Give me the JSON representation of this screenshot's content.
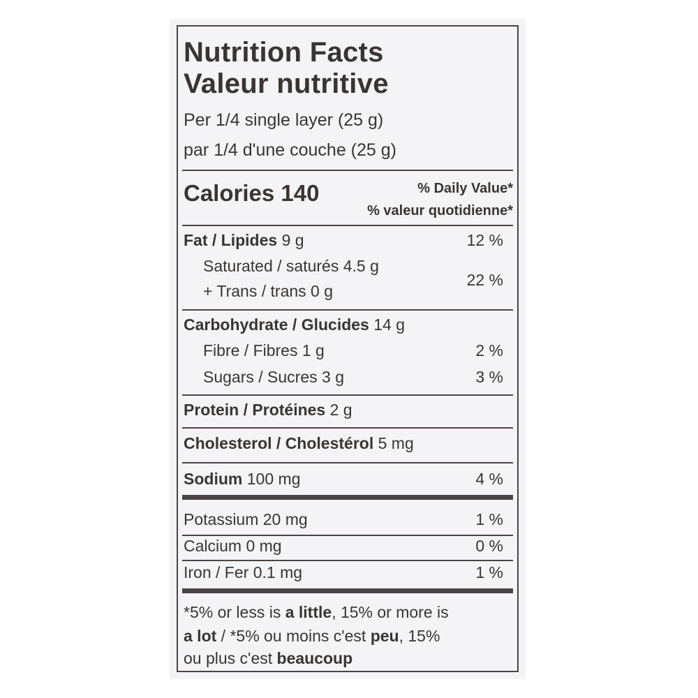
{
  "title_en": "Nutrition Facts",
  "title_fr": "Valeur nutritive",
  "serving_en": "Per 1/4 single layer (25 g)",
  "serving_fr": "par 1/4 d'une couche (25 g)",
  "calories": {
    "label": "Calories",
    "value": "140"
  },
  "daily_value_en": "% Daily Value*",
  "daily_value_fr": "% valeur quotidienne*",
  "nutrients": {
    "fat": {
      "label": "Fat / Lipides",
      "amount": "9 g",
      "dv": "12 %"
    },
    "saturated": {
      "label": "Saturated / saturés",
      "amount": "4.5 g"
    },
    "trans": {
      "label": "+ Trans / trans",
      "amount": "0 g"
    },
    "sat_trans_dv": "22 %",
    "carbohydrate": {
      "label": "Carbohydrate / Glucides",
      "amount": "14 g"
    },
    "fibre": {
      "label": "Fibre / Fibres",
      "amount": "1 g",
      "dv": "2 %"
    },
    "sugars": {
      "label": "Sugars / Sucres",
      "amount": "3 g",
      "dv": "3 %"
    },
    "protein": {
      "label": "Protein / Protéines",
      "amount": "2 g"
    },
    "cholesterol": {
      "label": "Cholesterol / Cholestérol",
      "amount": "5 mg"
    },
    "sodium": {
      "label": "Sodium",
      "amount": "100 mg",
      "dv": "4 %"
    },
    "potassium": {
      "label": "Potassium",
      "amount": "20 mg",
      "dv": "1 %"
    },
    "calcium": {
      "label": "Calcium",
      "amount": "0 mg",
      "dv": "0 %"
    },
    "iron": {
      "label": "Iron / Fer",
      "amount": "0.1 mg",
      "dv": "1 %"
    }
  },
  "footnote": {
    "p1": "*5% or less is ",
    "b1": "a little",
    "p2": ", 15% or more is",
    "b2": "a lot",
    "p3": " / *5% ou moins c'est ",
    "b3": "peu",
    "p4": ", 15%",
    "p5": "ou plus c'est ",
    "b4": "beaucoup"
  }
}
